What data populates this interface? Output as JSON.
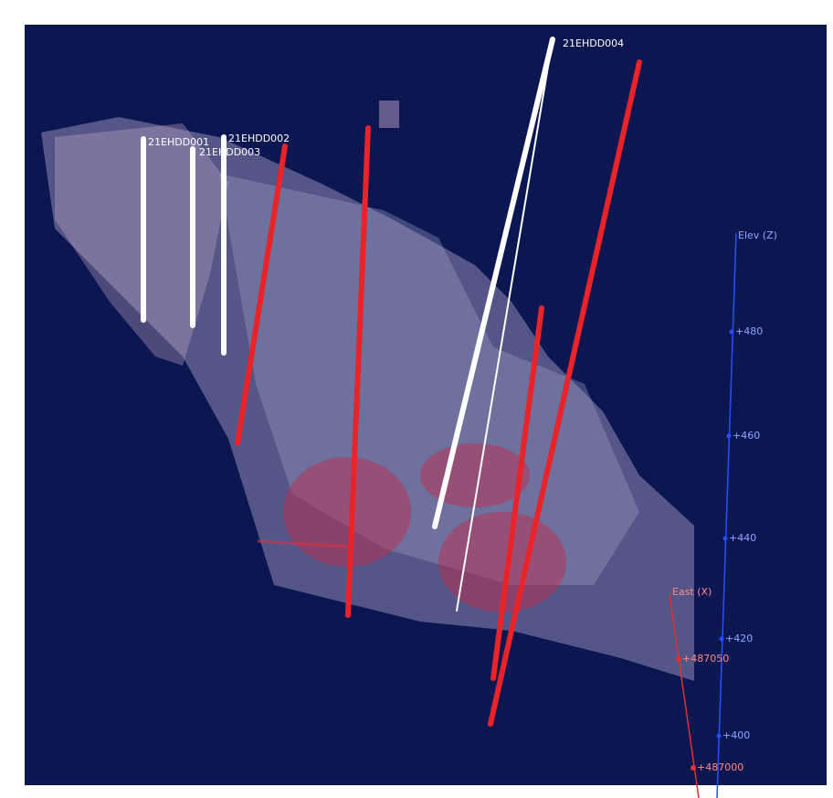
{
  "drillholes": [
    {
      "label": "21EHDD001"
    },
    {
      "label": "21EHDD002"
    },
    {
      "label": "21EHDD003"
    },
    {
      "label": "21EHDD004"
    }
  ],
  "elevation_axis": {
    "title": "Elev (Z)",
    "ticks": [
      "+480",
      "+460",
      "+440",
      "+420",
      "+400"
    ]
  },
  "east_axis": {
    "title": "East (X)",
    "ticks": [
      "+487050",
      "+487000"
    ]
  }
}
